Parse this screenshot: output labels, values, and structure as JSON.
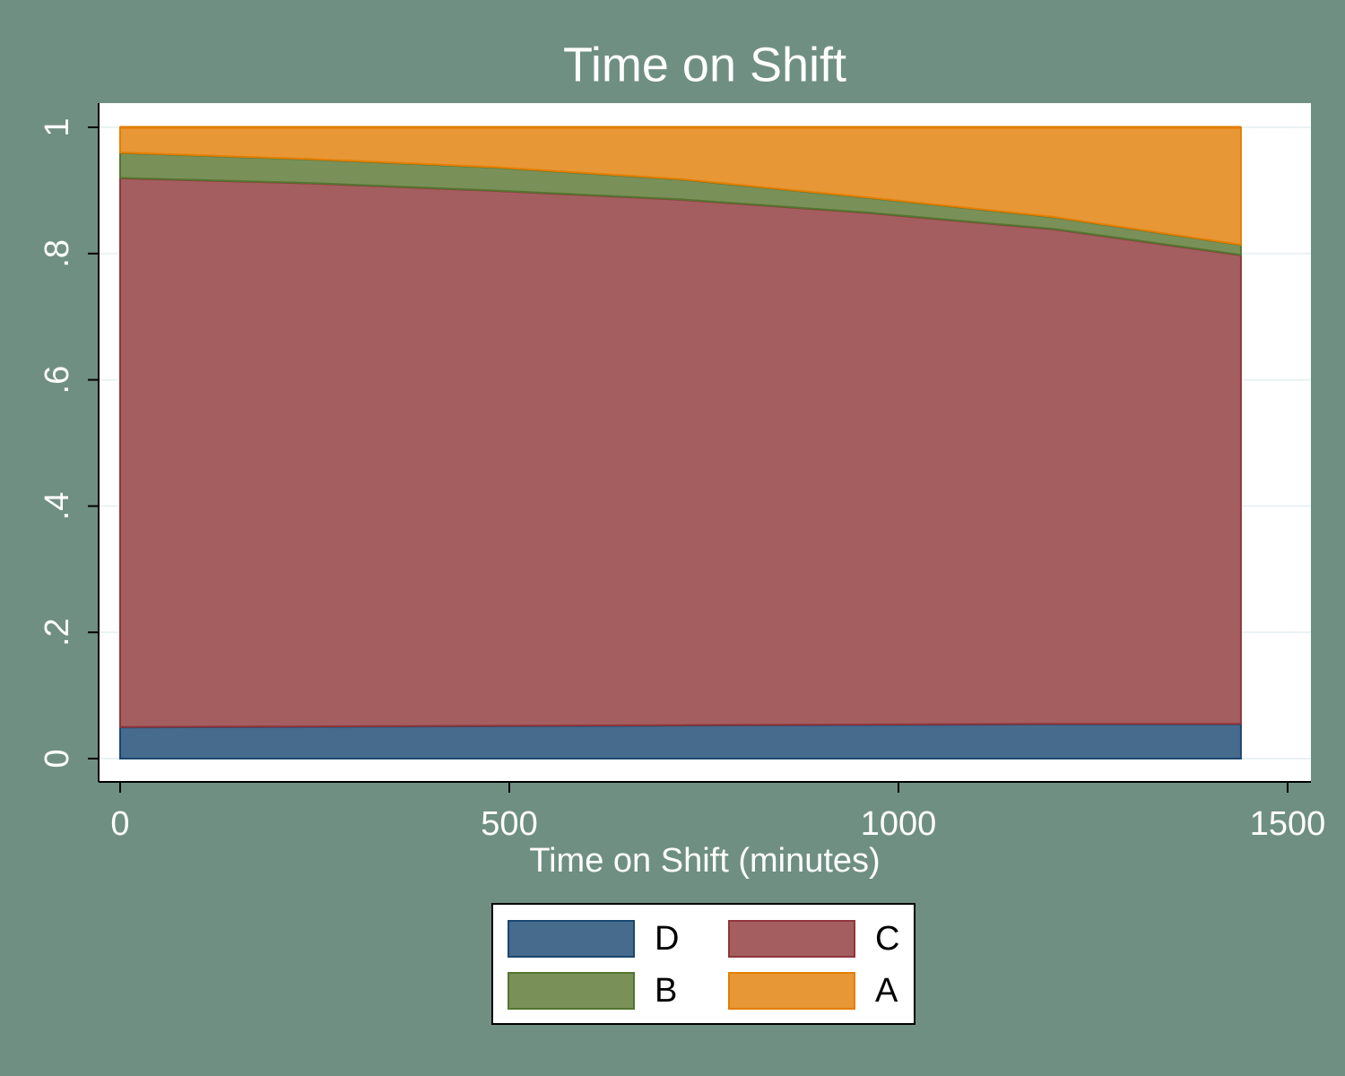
{
  "chart_data": {
    "type": "stacked-area",
    "title": "Time on Shift",
    "x_label": "Time on Shift (minutes)",
    "x": [
      0,
      240,
      480,
      720,
      960,
      1200,
      1440
    ],
    "series": [
      {
        "name": "D",
        "color": "#476b8d",
        "values": [
          0.05,
          0.051,
          0.052,
          0.053,
          0.054,
          0.055,
          0.055
        ]
      },
      {
        "name": "C",
        "color": "#a45e60",
        "values": [
          0.87,
          0.861,
          0.848,
          0.833,
          0.811,
          0.784,
          0.743
        ]
      },
      {
        "name": "B",
        "color": "#7a9059",
        "values": [
          0.04,
          0.038,
          0.037,
          0.032,
          0.024,
          0.019,
          0.016
        ]
      },
      {
        "name": "A",
        "color": "#e89736",
        "values": [
          0.04,
          0.05,
          0.063,
          0.082,
          0.111,
          0.142,
          0.186
        ]
      }
    ],
    "xlim": [
      0,
      1500
    ],
    "xticks": [
      0,
      500,
      1000,
      1500
    ],
    "ylim": [
      0,
      1
    ],
    "yticks": [
      0,
      {
        "value": 0.2,
        "label": ".2"
      },
      {
        "value": 0.4,
        "label": ".4"
      },
      {
        "value": 0.6,
        "label": ".6"
      },
      {
        "value": 0.8,
        "label": ".8"
      },
      1
    ],
    "grid": true
  }
}
